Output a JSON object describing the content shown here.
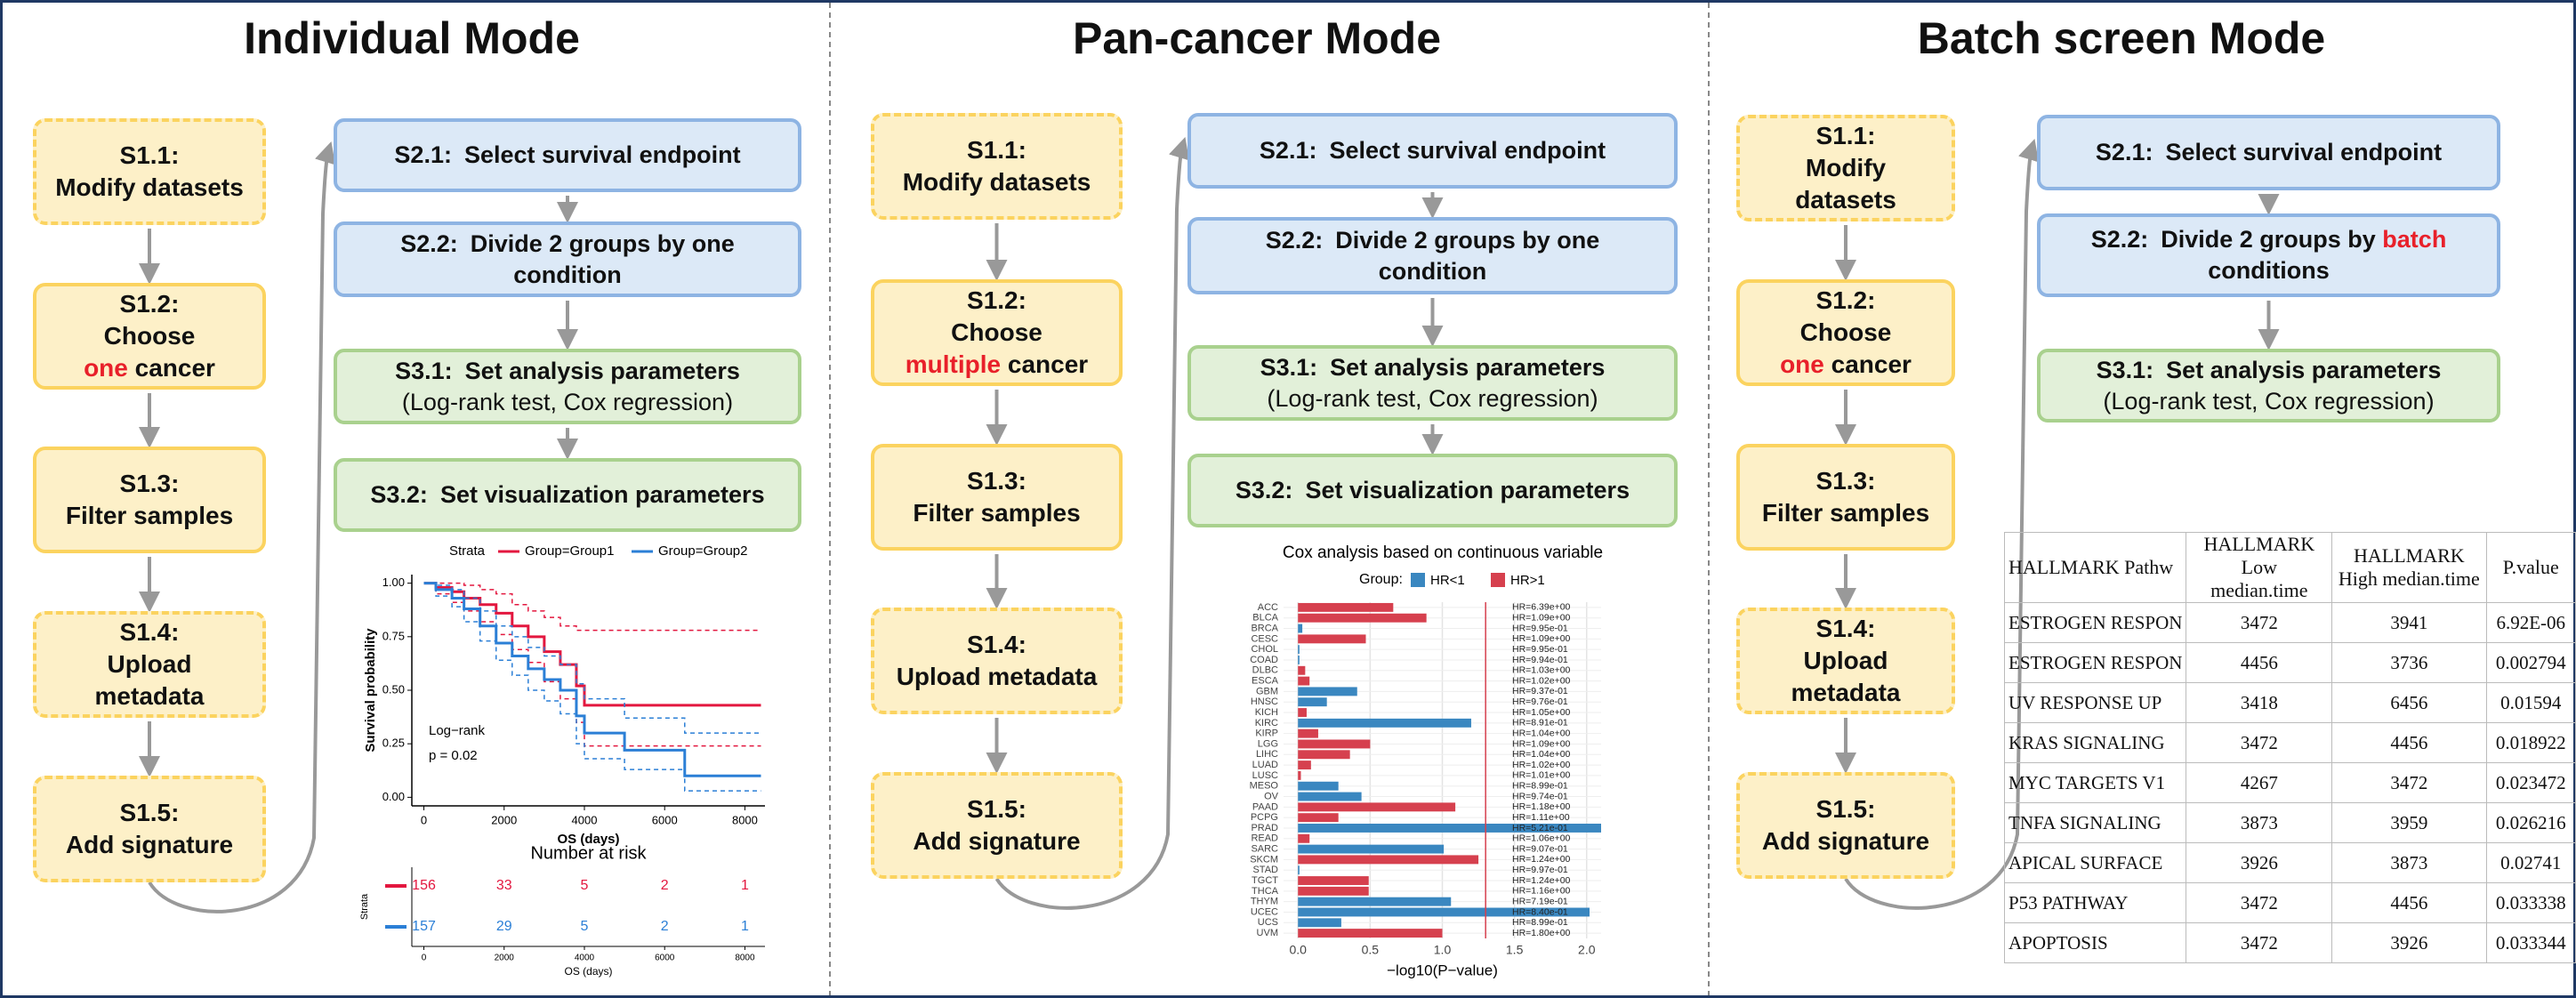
{
  "panels": [
    {
      "title": "Individual Mode",
      "left_steps": [
        {
          "label": "S1.1:",
          "lines": [
            [
              "Modify datasets"
            ]
          ],
          "dashed": true
        },
        {
          "label": "S1.2:",
          "lines": [
            [
              "Choose"
            ],
            [
              {
                "text": "one",
                "color": "#e8202a"
              },
              " cancer"
            ]
          ],
          "dashed": false
        },
        {
          "label": "S1.3:",
          "lines": [
            [
              "Filter samples"
            ]
          ],
          "dashed": false
        },
        {
          "label": "S1.4:",
          "lines": [
            [
              "Upload"
            ],
            [
              "metadata"
            ]
          ],
          "dashed": true
        },
        {
          "label": "S1.5:",
          "lines": [
            [
              "Add signature"
            ]
          ],
          "dashed": true
        }
      ],
      "right_steps": [
        {
          "label": "S2.1:",
          "lines": [
            [
              "Select survival endpoint"
            ]
          ],
          "fill": "#dce9f7",
          "border": "#8eb4e3"
        },
        {
          "label": "S2.2:",
          "lines": [
            [
              "Divide 2 groups by one"
            ],
            [
              "condition"
            ]
          ],
          "fill": "#dce9f7",
          "border": "#8eb4e3"
        },
        {
          "label": "S3.1:",
          "lines": [
            [
              "Set analysis parameters"
            ]
          ],
          "subtext": "(Log-rank test, Cox regression)",
          "fill": "#e2f0d9",
          "border": "#a9d18e"
        },
        {
          "label": "S3.2:",
          "lines": [
            [
              "Set visualization parameters"
            ]
          ],
          "fill": "#e2f0d9",
          "border": "#a9d18e"
        }
      ]
    },
    {
      "title": "Pan-cancer Mode",
      "left_steps": [
        {
          "label": "S1.1:",
          "lines": [
            [
              "Modify datasets"
            ]
          ],
          "dashed": true
        },
        {
          "label": "S1.2:",
          "lines": [
            [
              "Choose"
            ],
            [
              {
                "text": "multiple",
                "color": "#e8202a"
              },
              " cancer"
            ]
          ],
          "dashed": false
        },
        {
          "label": "S1.3:",
          "lines": [
            [
              "Filter samples"
            ]
          ],
          "dashed": false
        },
        {
          "label": "S1.4:",
          "lines": [
            [
              "Upload metadata"
            ]
          ],
          "dashed": true
        },
        {
          "label": "S1.5:",
          "lines": [
            [
              "Add signature"
            ]
          ],
          "dashed": true
        }
      ],
      "right_steps": [
        {
          "label": "S2.1:",
          "lines": [
            [
              "Select survival endpoint"
            ]
          ],
          "fill": "#dce9f7",
          "border": "#8eb4e3"
        },
        {
          "label": "S2.2:",
          "lines": [
            [
              "Divide 2 groups by one"
            ],
            [
              "condition"
            ]
          ],
          "fill": "#dce9f7",
          "border": "#8eb4e3"
        },
        {
          "label": "S3.1:",
          "lines": [
            [
              "Set analysis parameters"
            ]
          ],
          "subtext": "(Log-rank test, Cox regression)",
          "fill": "#e2f0d9",
          "border": "#a9d18e"
        },
        {
          "label": "S3.2:",
          "lines": [
            [
              "Set visualization parameters"
            ]
          ],
          "fill": "#e2f0d9",
          "border": "#a9d18e"
        }
      ]
    },
    {
      "title": "Batch screen Mode",
      "left_steps": [
        {
          "label": "S1.1:",
          "lines": [
            [
              "Modify"
            ],
            [
              "datasets"
            ]
          ],
          "dashed": true
        },
        {
          "label": "S1.2:",
          "lines": [
            [
              "Choose"
            ],
            [
              {
                "text": "one",
                "color": "#e8202a"
              },
              " cancer"
            ]
          ],
          "dashed": false
        },
        {
          "label": "S1.3:",
          "lines": [
            [
              "Filter samples"
            ]
          ],
          "dashed": false
        },
        {
          "label": "S1.4:",
          "lines": [
            [
              "Upload"
            ],
            [
              "metadata"
            ]
          ],
          "dashed": true
        },
        {
          "label": "S1.5:",
          "lines": [
            [
              "Add signature"
            ]
          ],
          "dashed": true
        }
      ],
      "right_steps": [
        {
          "label": "S2.1:",
          "lines": [
            [
              "Select survival endpoint"
            ]
          ],
          "fill": "#dce9f7",
          "border": "#8eb4e3"
        },
        {
          "label": "S2.2:",
          "lines": [
            [
              "Divide 2 groups by ",
              {
                "text": "batch",
                "color": "#e8202a"
              }
            ],
            [
              "conditions"
            ]
          ],
          "fill": "#dce9f7",
          "border": "#8eb4e3"
        },
        {
          "label": "S3.1:",
          "lines": [
            [
              "Set analysis parameters"
            ]
          ],
          "subtext": "(Log-rank test, Cox regression)",
          "fill": "#e2f0d9",
          "border": "#a9d18e"
        }
      ]
    }
  ],
  "km_chart": {
    "type": "step",
    "legend_title": "Strata",
    "xlabel": "OS (days)",
    "ylabel": "Survival probability",
    "annotation": [
      "Log−rank",
      "p = 0.02"
    ],
    "xlim": [
      -300,
      8500
    ],
    "xticks": [
      0,
      2000,
      4000,
      6000,
      8000
    ],
    "ylim": [
      -0.04,
      1.04
    ],
    "yticks": [
      {
        "value": 0,
        "label": "0.00"
      },
      {
        "value": 0.25,
        "label": "0.25"
      },
      {
        "value": 0.5,
        "label": "0.50"
      },
      {
        "value": 0.75,
        "label": "0.75"
      },
      {
        "value": 1,
        "label": "1.00"
      }
    ],
    "series": [
      {
        "name": "Group=Group1",
        "color": "#e3173f",
        "x": [
          0,
          300,
          700,
          1000,
          1400,
          1800,
          2200,
          2600,
          3000,
          3400,
          3800,
          4000,
          8400
        ],
        "y": [
          1,
          0.98,
          0.96,
          0.93,
          0.9,
          0.86,
          0.8,
          0.75,
          0.68,
          0.62,
          0.52,
          0.43,
          0.43
        ],
        "ci_upper": [
          1,
          1,
          1,
          0.99,
          0.97,
          0.95,
          0.9,
          0.87,
          0.84,
          0.8,
          0.78,
          0.78,
          0.78
        ],
        "ci_lower": [
          1,
          0.95,
          0.91,
          0.87,
          0.82,
          0.76,
          0.69,
          0.63,
          0.54,
          0.46,
          0.35,
          0.24,
          0.24
        ]
      },
      {
        "name": "Group=Group2",
        "color": "#2b7fd6",
        "x": [
          0,
          300,
          700,
          1000,
          1400,
          1800,
          2200,
          2600,
          3000,
          3400,
          3800,
          4000,
          5000,
          6500,
          8400
        ],
        "y": [
          1,
          0.97,
          0.93,
          0.88,
          0.8,
          0.72,
          0.66,
          0.6,
          0.55,
          0.5,
          0.38,
          0.3,
          0.22,
          0.1,
          0.1
        ],
        "ci_upper": [
          1,
          0.99,
          0.97,
          0.93,
          0.87,
          0.8,
          0.75,
          0.7,
          0.66,
          0.62,
          0.53,
          0.46,
          0.37,
          0.3,
          0.3
        ],
        "ci_lower": [
          1,
          0.94,
          0.89,
          0.82,
          0.73,
          0.64,
          0.57,
          0.5,
          0.45,
          0.39,
          0.25,
          0.18,
          0.13,
          0.03,
          0.03
        ]
      }
    ],
    "risk_table": {
      "title": "Number at risk",
      "ylabel": "Strata",
      "xlabel": "OS (days)",
      "xticks": [
        0,
        2000,
        4000,
        6000,
        8000
      ],
      "rows": [
        [
          156,
          33,
          5,
          2,
          1
        ],
        [
          157,
          29,
          5,
          2,
          1
        ]
      ]
    }
  },
  "cox_chart": {
    "type": "bar",
    "title": "Cox analysis based on continuous variable",
    "legend_title": "Group:",
    "xlabel": "−log10(P−value)",
    "categories": [
      "ACC",
      "BLCA",
      "BRCA",
      "CESC",
      "CHOL",
      "COAD",
      "DLBC",
      "ESCA",
      "GBM",
      "HNSC",
      "KICH",
      "KIRC",
      "KIRP",
      "LGG",
      "LIHC",
      "LUAD",
      "LUSC",
      "MESO",
      "OV",
      "PAAD",
      "PCPG",
      "PRAD",
      "READ",
      "SARC",
      "SKCM",
      "STAD",
      "TGCT",
      "THCA",
      "THYM",
      "UCEC",
      "UCS",
      "UVM"
    ],
    "series": [
      {
        "name": "HR<1",
        "color": "#3a87c0",
        "values": [
          null,
          null,
          0.03,
          null,
          0.01,
          0.01,
          null,
          null,
          0.41,
          0.2,
          null,
          1.2,
          null,
          null,
          null,
          null,
          null,
          0.28,
          0.44,
          null,
          null,
          2.1,
          null,
          1.01,
          null,
          0.01,
          null,
          null,
          1.06,
          2.02,
          0.3,
          null
        ]
      },
      {
        "name": "HR>1",
        "color": "#d6404e",
        "values": [
          0.66,
          0.89,
          null,
          0.47,
          null,
          null,
          0.05,
          0.08,
          null,
          null,
          0.06,
          null,
          0.14,
          0.5,
          0.36,
          0.09,
          0.02,
          null,
          null,
          1.09,
          0.28,
          null,
          0.08,
          null,
          1.25,
          null,
          0.49,
          0.49,
          null,
          null,
          null,
          1.0
        ]
      }
    ],
    "hr_labels": [
      "HR=6.39e+00",
      "HR=1.09e+00",
      "HR=9.95e-01",
      "HR=1.09e+00",
      "HR=9.95e-01",
      "HR=9.94e-01",
      "HR=1.03e+00",
      "HR=1.02e+00",
      "HR=9.37e-01",
      "HR=9.76e-01",
      "HR=1.05e+00",
      "HR=8.91e-01",
      "HR=1.04e+00",
      "HR=1.09e+00",
      "HR=1.04e+00",
      "HR=1.02e+00",
      "HR=1.01e+00",
      "HR=8.99e-01",
      "HR=9.74e-01",
      "HR=1.18e+00",
      "HR=1.11e+00",
      "HR=5.21e-01",
      "HR=1.06e+00",
      "HR=9.07e-01",
      "HR=1.24e+00",
      "HR=9.97e-01",
      "HR=1.24e+00",
      "HR=1.16e+00",
      "HR=7.19e-01",
      "HR=8.40e-01",
      "HR=8.99e-01",
      "HR=1.80e+00"
    ],
    "xlim": [
      -0.1,
      2.1
    ],
    "xticks": [
      {
        "value": 0,
        "label": "0.0"
      },
      0.5,
      {
        "value": 1,
        "label": "1.0"
      },
      1.5,
      {
        "value": 2,
        "label": "2.0"
      }
    ],
    "reference_line": 1.3,
    "reference_color": "#d6404e",
    "grid": true
  },
  "table": {
    "header": [
      "HALLMARK Pathw",
      "HALLMARK Low median.time",
      "HALLMARK High median.time",
      "P.value"
    ],
    "rows": [
      [
        "ESTROGEN RESPON",
        "3472",
        "3941",
        "6.92E-06"
      ],
      [
        "ESTROGEN RESPON",
        "4456",
        "3736",
        "0.002794"
      ],
      [
        "UV RESPONSE UP",
        "3418",
        "6456",
        "0.01594"
      ],
      [
        "KRAS SIGNALING",
        "3472",
        "4456",
        "0.018922"
      ],
      [
        "MYC TARGETS V1",
        "4267",
        "3472",
        "0.023472"
      ],
      [
        "TNFA SIGNALING",
        "3873",
        "3959",
        "0.026216"
      ],
      [
        "APICAL SURFACE",
        "3926",
        "3873",
        "0.02741"
      ],
      [
        "P53 PATHWAY",
        "3472",
        "4456",
        "0.033338"
      ],
      [
        "APOPTOSIS",
        "3472",
        "3926",
        "0.033344"
      ]
    ]
  }
}
